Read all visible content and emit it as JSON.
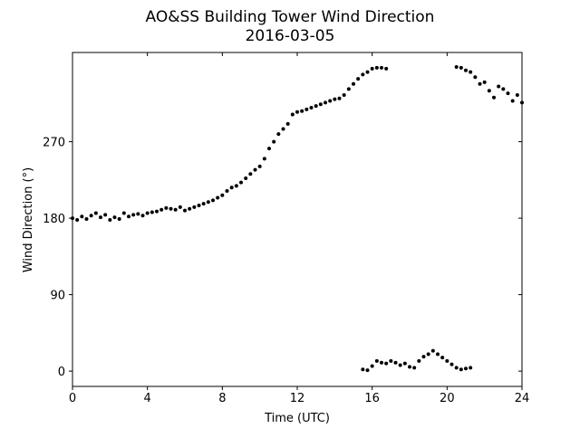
{
  "chart_data": {
    "type": "scatter",
    "title": "AO&SS Building Tower Wind Direction",
    "subtitle": "2016-03-05",
    "x_label": "Time (UTC)",
    "y_label": "Wind Direction (°)",
    "xlim": [
      0,
      24
    ],
    "xticks": [
      0,
      4,
      8,
      12,
      16,
      20,
      24
    ],
    "ylim": [
      -18,
      375
    ],
    "yticks": [
      0,
      90,
      180,
      270
    ],
    "grid": false,
    "series": [
      {
        "color": "#000000",
        "x": [
          0,
          0.25,
          0.5,
          0.75,
          1,
          1.25,
          1.5,
          1.75,
          2,
          2.25,
          2.5,
          2.75,
          3,
          3.25,
          3.5,
          3.75,
          4,
          4.25,
          4.5,
          4.75,
          5,
          5.25,
          5.5,
          5.75,
          6,
          6.25,
          6.5,
          6.75,
          7,
          7.25,
          7.5,
          7.75,
          8,
          8.25,
          8.5,
          8.75,
          9,
          9.25,
          9.5,
          9.75,
          10,
          10.25,
          10.5,
          10.75,
          11,
          11.25,
          11.5,
          11.75,
          12,
          12.25,
          12.5,
          12.75,
          13,
          13.25,
          13.5,
          13.75,
          14,
          14.25,
          14.5,
          14.75,
          15,
          15.25,
          15.5,
          15.75,
          16,
          16.25,
          16.5,
          16.75,
          15.5,
          15.75,
          16,
          16.25,
          16.5,
          16.75,
          17,
          17.25,
          17.5,
          17.75,
          18,
          18.25,
          18.5,
          18.75,
          19,
          19.25,
          19.5,
          19.75,
          20,
          20.25,
          20.5,
          20.75,
          21,
          21.25,
          20.5,
          20.75,
          21,
          21.25,
          21.5,
          21.75,
          22,
          22.25,
          22.5,
          22.75,
          23,
          23.25,
          23.5,
          23.75,
          24
        ],
        "values": [
          180,
          178,
          182,
          179,
          183,
          186,
          181,
          184,
          178,
          181,
          179,
          186,
          182,
          184,
          185,
          183,
          186,
          187,
          188,
          190,
          192,
          191,
          190,
          193,
          189,
          191,
          193,
          195,
          197,
          199,
          201,
          204,
          207,
          212,
          216,
          218,
          222,
          227,
          232,
          237,
          241,
          250,
          262,
          270,
          279,
          285,
          291,
          302,
          305,
          306,
          308,
          310,
          312,
          314,
          316,
          318,
          320,
          321,
          325,
          332,
          338,
          344,
          349,
          352,
          356,
          357,
          357,
          356,
          2,
          1,
          6,
          12,
          10,
          9,
          12,
          10,
          7,
          9,
          5,
          4,
          12,
          17,
          20,
          24,
          20,
          16,
          12,
          8,
          4,
          2,
          3,
          4,
          358,
          357,
          354,
          352,
          346,
          338,
          340,
          330,
          322,
          335,
          332,
          327,
          318,
          325,
          316
        ]
      }
    ]
  }
}
